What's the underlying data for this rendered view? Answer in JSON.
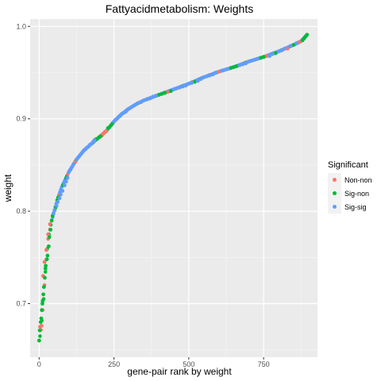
{
  "chart_data": {
    "type": "scatter",
    "title": "Fattyacidmetabolism: Weights",
    "xlabel": "gene-pair rank by weight",
    "ylabel": "weight",
    "xlim": [
      -30,
      930
    ],
    "ylim": [
      0.642,
      1.008
    ],
    "xticks": [
      {
        "value": 0,
        "label": "0"
      },
      {
        "value": 250,
        "label": "250"
      },
      {
        "value": 500,
        "label": "500"
      },
      {
        "value": 750,
        "label": "750"
      }
    ],
    "yticks": [
      {
        "value": 0.7,
        "label": "0.7"
      },
      {
        "value": 0.8,
        "label": "0.8"
      },
      {
        "value": 0.9,
        "label": "0.9"
      },
      {
        "value": 1.0,
        "label": "1.0"
      }
    ],
    "grid": true,
    "legend": {
      "title": "Significant",
      "position": "right",
      "entries": [
        {
          "name": "Non-non",
          "color": "#F8766D"
        },
        {
          "name": "Sig-non",
          "color": "#00BA38"
        },
        {
          "name": "Sig-sig",
          "color": "#619CFF"
        }
      ]
    },
    "curve_keypoints": [
      [
        0,
        0.66
      ],
      [
        5,
        0.668
      ],
      [
        10,
        0.685
      ],
      [
        15,
        0.705
      ],
      [
        20,
        0.73
      ],
      [
        25,
        0.752
      ],
      [
        30,
        0.77
      ],
      [
        40,
        0.787
      ],
      [
        50,
        0.8
      ],
      [
        60,
        0.812
      ],
      [
        75,
        0.826
      ],
      [
        100,
        0.843
      ],
      [
        125,
        0.856
      ],
      [
        150,
        0.866
      ],
      [
        175,
        0.873
      ],
      [
        200,
        0.88
      ],
      [
        225,
        0.887
      ],
      [
        250,
        0.897
      ],
      [
        275,
        0.905
      ],
      [
        300,
        0.911
      ],
      [
        325,
        0.916
      ],
      [
        350,
        0.92
      ],
      [
        400,
        0.926
      ],
      [
        450,
        0.932
      ],
      [
        500,
        0.938
      ],
      [
        550,
        0.945
      ],
      [
        600,
        0.951
      ],
      [
        650,
        0.956
      ],
      [
        700,
        0.962
      ],
      [
        750,
        0.967
      ],
      [
        800,
        0.973
      ],
      [
        850,
        0.98
      ],
      [
        875,
        0.984
      ],
      [
        895,
        0.991
      ]
    ],
    "series": [
      {
        "name": "Non-non",
        "x": [
          3,
          8,
          13,
          18,
          24,
          30,
          36,
          120,
          210,
          215,
          220,
          225,
          430,
          600,
          760,
          830,
          870
        ],
        "y": [
          0.675,
          0.676,
          0.73,
          0.745,
          0.758,
          0.775,
          0.786,
          0.853,
          0.882,
          0.884,
          0.886,
          0.887,
          0.929,
          0.951,
          0.968,
          0.976,
          0.983
        ]
      },
      {
        "name": "Sig-non",
        "x": [
          0,
          2,
          5,
          7,
          9,
          11,
          12,
          14,
          16,
          19,
          21,
          22,
          26,
          28,
          32,
          34,
          38,
          42,
          45,
          55,
          65,
          80,
          190,
          200,
          205,
          230,
          235,
          240,
          245,
          400,
          410,
          420,
          440,
          520,
          640,
          650,
          660,
          740,
          750,
          790,
          850,
          880,
          885,
          890,
          895
        ],
        "y": [
          0.66,
          0.671,
          0.68,
          0.684,
          0.693,
          0.7,
          0.703,
          0.71,
          0.718,
          0.728,
          0.738,
          0.741,
          0.748,
          0.752,
          0.762,
          0.772,
          0.78,
          0.79,
          0.795,
          0.804,
          0.815,
          0.828,
          0.878,
          0.88,
          0.881,
          0.89,
          0.891,
          0.893,
          0.895,
          0.926,
          0.927,
          0.928,
          0.93,
          0.94,
          0.955,
          0.956,
          0.957,
          0.966,
          0.967,
          0.971,
          0.98,
          0.985,
          0.987,
          0.989,
          0.991
        ]
      },
      {
        "name": "Sig-sig",
        "x": [
          48,
          52,
          58,
          62,
          68,
          72,
          78,
          85,
          90,
          95,
          100,
          105,
          110,
          115,
          125,
          130,
          135,
          140,
          145,
          150,
          155,
          160,
          165,
          170,
          175,
          180,
          185,
          250,
          255,
          260,
          265,
          270,
          275,
          280,
          285,
          290,
          295,
          300,
          310,
          320,
          330,
          340,
          350,
          360,
          370,
          380,
          390,
          450,
          460,
          470,
          480,
          490,
          500,
          510,
          530,
          540,
          550,
          560,
          570,
          580,
          590,
          610,
          620,
          630,
          670,
          680,
          690,
          700,
          710,
          720,
          730,
          770,
          780,
          800,
          810,
          820,
          840,
          860
        ],
        "y": [
          0.798,
          0.801,
          0.806,
          0.81,
          0.814,
          0.818,
          0.822,
          0.828,
          0.832,
          0.836,
          0.843,
          0.845,
          0.848,
          0.851,
          0.856,
          0.858,
          0.86,
          0.862,
          0.864,
          0.866,
          0.867,
          0.869,
          0.87,
          0.872,
          0.873,
          0.875,
          0.877,
          0.897,
          0.899,
          0.9,
          0.902,
          0.903,
          0.905,
          0.906,
          0.907,
          0.908,
          0.91,
          0.911,
          0.913,
          0.915,
          0.917,
          0.918,
          0.92,
          0.921,
          0.922,
          0.924,
          0.925,
          0.932,
          0.933,
          0.934,
          0.935,
          0.936,
          0.938,
          0.939,
          0.941,
          0.943,
          0.945,
          0.946,
          0.947,
          0.948,
          0.95,
          0.952,
          0.953,
          0.954,
          0.958,
          0.959,
          0.96,
          0.962,
          0.963,
          0.964,
          0.965,
          0.968,
          0.97,
          0.973,
          0.974,
          0.976,
          0.979,
          0.982
        ]
      }
    ]
  }
}
